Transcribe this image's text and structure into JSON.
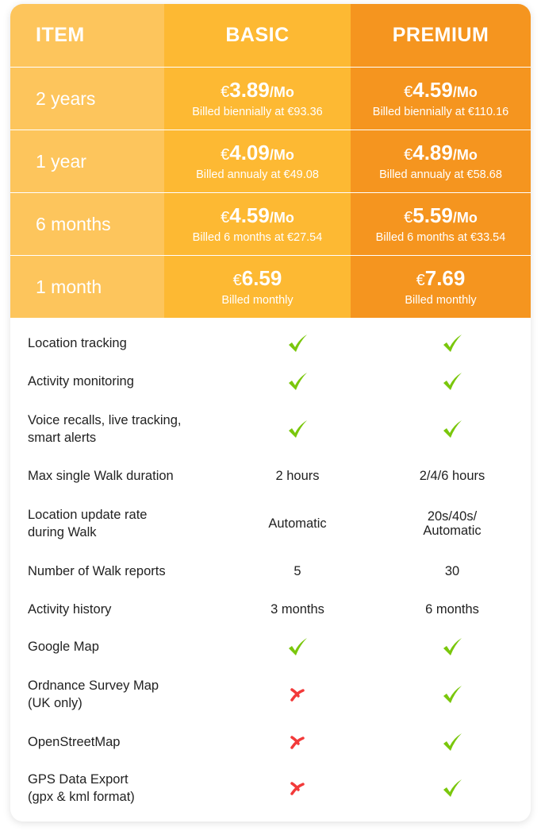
{
  "header": {
    "item": "ITEM",
    "basic": "BASIC",
    "premium": "PREMIUM"
  },
  "plans": [
    {
      "label": "2 years",
      "basic": {
        "currency": "€",
        "price": "3.89",
        "unit": "/Mo",
        "billed": "Billed biennially at €93.36"
      },
      "premium": {
        "currency": "€",
        "price": "4.59",
        "unit": "/Mo",
        "billed": "Billed biennially at €110.16"
      }
    },
    {
      "label": "1 year",
      "basic": {
        "currency": "€",
        "price": "4.09",
        "unit": "/Mo",
        "billed": "Billed annualy at €49.08"
      },
      "premium": {
        "currency": "€",
        "price": "4.89",
        "unit": "/Mo",
        "billed": "Billed annualy at €58.68"
      }
    },
    {
      "label": "6 months",
      "basic": {
        "currency": "€",
        "price": "4.59",
        "unit": "/Mo",
        "billed": "Billed 6 months at €27.54"
      },
      "premium": {
        "currency": "€",
        "price": "5.59",
        "unit": "/Mo",
        "billed": "Billed 6 months at €33.54"
      }
    },
    {
      "label": "1 month",
      "basic": {
        "currency": "€",
        "price": "6.59",
        "unit": "",
        "billed": "Billed monthly"
      },
      "premium": {
        "currency": "€",
        "price": "7.69",
        "unit": "",
        "billed": "Billed monthly"
      }
    }
  ],
  "features": [
    {
      "label": "Location tracking",
      "basic": "check-icon",
      "premium": "check-icon"
    },
    {
      "label": "Activity monitoring",
      "basic": "check-icon",
      "premium": "check-icon"
    },
    {
      "label": "Voice recalls, live tracking,\nsmart alerts",
      "basic": "check-icon",
      "premium": "check-icon"
    },
    {
      "label": "Max single Walk duration",
      "basic": "2 hours",
      "premium": "2/4/6 hours"
    },
    {
      "label": "Location update rate\nduring Walk",
      "basic": "Automatic",
      "premium": "20s/40s/\nAutomatic"
    },
    {
      "label": "Number of Walk reports",
      "basic": "5",
      "premium": "30"
    },
    {
      "label": "Activity history",
      "basic": "3 months",
      "premium": "6 months"
    },
    {
      "label": "Google Map",
      "basic": "check-icon",
      "premium": "check-icon"
    },
    {
      "label": "Ordnance Survey Map\n(UK only)",
      "basic": "cross-icon",
      "premium": "check-icon"
    },
    {
      "label": "OpenStreetMap",
      "basic": "cross-icon",
      "premium": "check-icon"
    },
    {
      "label": "GPS Data Export\n(gpx & kml format)",
      "basic": "cross-icon",
      "premium": "check-icon"
    }
  ],
  "colors": {
    "item_col": "#fdc55c",
    "basic_col": "#fdb933",
    "premium_col": "#f5951f",
    "check": "#7ac70c",
    "cross": "#f23a3a"
  }
}
